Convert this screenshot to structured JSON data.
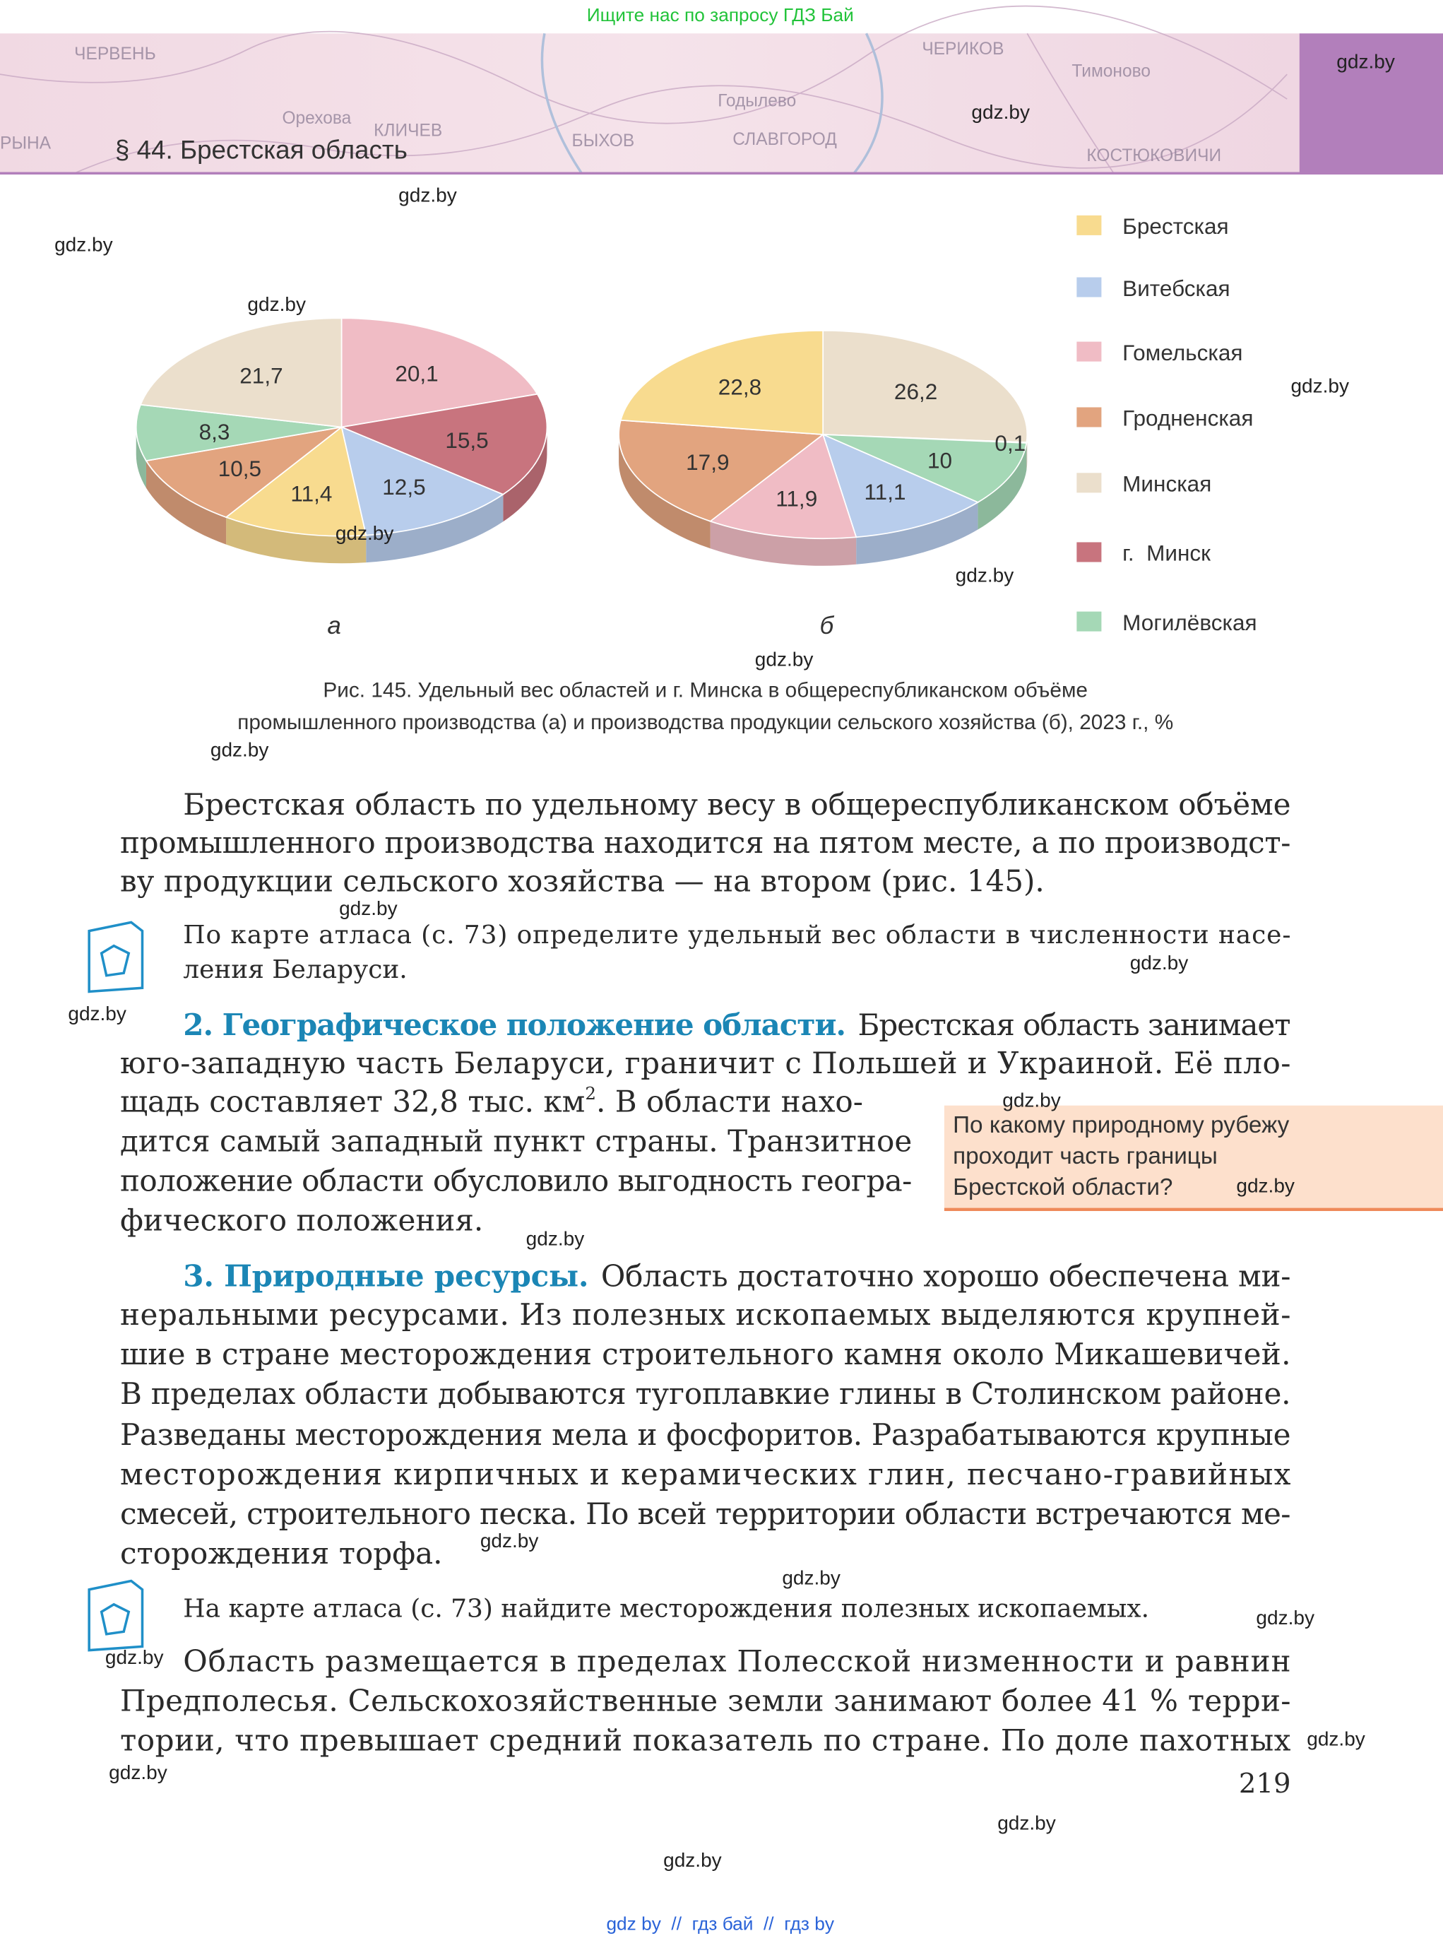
{
  "top_banner": "Ищите нас по запросу ГДЗ Бай",
  "header": {
    "title": "§ 44. Брестская область",
    "map_labels": [
      "ЧЕРВЕНЬ",
      "Орехова",
      "КЛИЧЕВ",
      "БЫХОВ",
      "Годылево",
      "СЛАВГОРОД",
      "ЧЕРИКОВ",
      "Тимоново",
      "КОСТЮКОВИЧИ",
      "РЫНА"
    ]
  },
  "legend": {
    "items": [
      {
        "name": "Брестская",
        "color": "#f8db8f"
      },
      {
        "name": "Витебская",
        "color": "#b8cdec"
      },
      {
        "name": "Гомельская",
        "color": "#f0bcc5"
      },
      {
        "name": "Гродненская",
        "color": "#e2a47f"
      },
      {
        "name": "Минская",
        "color": "#ebdfcc"
      },
      {
        "name": "г.  Минск",
        "color": "#c8747e"
      },
      {
        "name": "Могилёвская",
        "color": "#a5d8b6"
      }
    ]
  },
  "chart_data": [
    {
      "type": "pie",
      "label": "а",
      "values": [
        11.4,
        12.5,
        20.1,
        10.5,
        21.7,
        15.5,
        8.3
      ],
      "value_labels": [
        "11,4",
        "12,5",
        "20,1",
        "10,5",
        "21,7",
        "15,5",
        "8,3"
      ]
    },
    {
      "type": "pie",
      "label": "б",
      "values": [
        22.8,
        11.1,
        11.9,
        17.9,
        26.2,
        0.1,
        10
      ],
      "value_labels": [
        "22,8",
        "11,1",
        "11,9",
        "17,9",
        "26,2",
        "0,1",
        "10"
      ]
    }
  ],
  "caption": {
    "lines": [
      "Рис. 145. Удельный вес областей и г. Минска в общереспубликанском объёме",
      "промышленного производства (а) и производства продукции сельского хозяйства (б), 2023 г., %"
    ]
  },
  "paragraph_1": {
    "lines": [
      "Брестская область по удельному весу в общереспубликанском объёме",
      "промышленного производства находится на пятом месте, а по производст-",
      "ву продукции сельского хозяйства — на втором (рис. 145)."
    ]
  },
  "task_1": {
    "lines": [
      "По карте атласа (с. 73) определите удельный вес области в численности насе-",
      "ления Беларуси."
    ]
  },
  "section_2": {
    "heading": "2. Географическое положение области.",
    "first_line": "Брестская область занимает",
    "lines": [
      "юго-западную часть Беларуси, граничит с Польшей и Украиной. Её пло-"
    ],
    "area_line": {
      "text": "щадь составляет 32,8 тыс. км",
      "sup": "2",
      "rest": ". В области нахо-"
    },
    "more_lines": [
      "дится самый западный пункт страны. Транзитное",
      "положение области обусловило выгодность геогра-",
      "фического положения."
    ]
  },
  "question_box": {
    "lines": [
      "По какому природному рубежу",
      "проходит часть границы",
      "Брестской области?"
    ]
  },
  "section_3": {
    "heading": "3. Природные ресурсы.",
    "first_line": "Область достаточно хорошо обеспечена ми-",
    "lines": [
      "неральными ресурсами. Из полезных ископаемых выделяются крупней-",
      "шие в стране месторождения строительного камня около Микашевичей.",
      "В пределах области добываются тугоплавкие глины в Столинском районе.",
      "Разведаны месторождения мела и фосфоритов. Разрабатываются крупные",
      "месторождения кирпичных и керамических глин, песчано-гравийных",
      "смесей, строительного песка. По всей территории области встречаются ме-",
      "сторождения торфа."
    ]
  },
  "task_2": {
    "lines": [
      "На карте атласа (с. 73) найдите месторождения полезных ископаемых."
    ]
  },
  "paragraph_4": {
    "lines": [
      "Область размещается в пределах Полесской низменности и равнин",
      "Предполесья. Сельскохозяйственные земли занимают более 41 % терри-",
      "тории, что превышает средний показатель по стране. По доле пахотных"
    ]
  },
  "page_number": "219",
  "watermarks": [
    "gdz.by",
    "gdz.by",
    "gdz.by",
    "gdz.by",
    "gdz.by",
    "gdz.by",
    "gdz.by",
    "gdz.by",
    "gdz.by",
    "gdz.by",
    "gdz.by",
    "gdz.by",
    "gdz.by",
    "gdz.by",
    "gdz.by",
    "gdz.by",
    "gdz.by",
    "gdz.by",
    "gdz.by",
    "gdz.by",
    "gdz.by",
    "gdz.by",
    "gdz.by",
    "gdz.by"
  ],
  "footer": "gdz by  //  гдз бай  //  гдз by"
}
